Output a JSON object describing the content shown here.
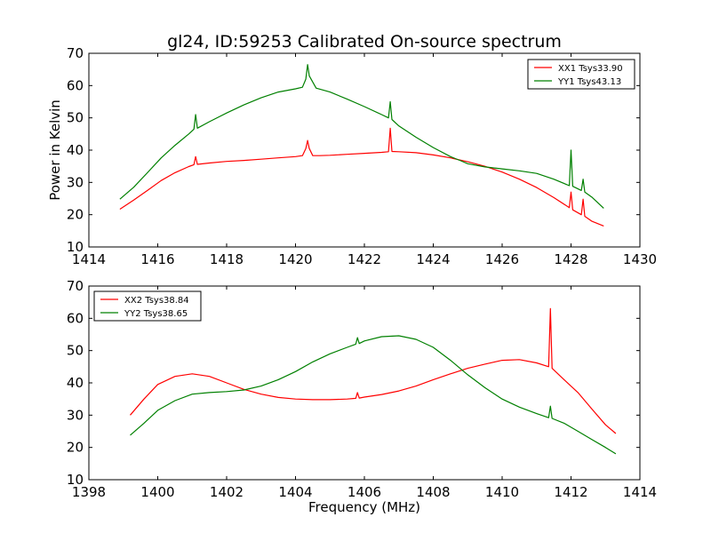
{
  "colors": {
    "xx": "#ff0000",
    "yy": "#008000"
  },
  "chart_data": [
    {
      "type": "line",
      "title": "gl24, ID:59253 Calibrated On-source spectrum",
      "xlabel": "",
      "ylabel": "Power in Kelvin",
      "xlim": [
        1414,
        1430
      ],
      "ylim": [
        10,
        70
      ],
      "xticks": [
        1414,
        1416,
        1418,
        1420,
        1422,
        1424,
        1426,
        1428,
        1430
      ],
      "yticks": [
        10,
        20,
        30,
        40,
        50,
        60,
        70
      ],
      "grid": false,
      "legend_position": "top-right",
      "series": [
        {
          "name": "XX1 Tsys33.90",
          "color": "#ff0000",
          "x": [
            1414.9,
            1415.3,
            1415.7,
            1416.1,
            1416.5,
            1416.9,
            1417.05,
            1417.1,
            1417.15,
            1417.5,
            1418.0,
            1418.5,
            1419.0,
            1419.5,
            1420.0,
            1420.2,
            1420.3,
            1420.35,
            1420.4,
            1420.5,
            1420.7,
            1421.0,
            1421.5,
            1422.0,
            1422.5,
            1422.7,
            1422.75,
            1422.8,
            1423.0,
            1423.5,
            1424.0,
            1424.5,
            1425.0,
            1425.5,
            1426.0,
            1426.5,
            1427.0,
            1427.5,
            1427.95,
            1428.0,
            1428.05,
            1428.3,
            1428.35,
            1428.4,
            1428.6,
            1428.95
          ],
          "y": [
            21.7,
            24.5,
            27.5,
            30.6,
            33.0,
            34.9,
            35.5,
            38.0,
            35.6,
            36.0,
            36.5,
            36.8,
            37.2,
            37.6,
            38.0,
            38.3,
            40.5,
            43.0,
            40.5,
            38.3,
            38.3,
            38.4,
            38.7,
            39.0,
            39.3,
            39.5,
            46.8,
            39.6,
            39.5,
            39.2,
            38.5,
            37.6,
            36.4,
            35.0,
            33.2,
            31.0,
            28.4,
            25.3,
            22.2,
            27.0,
            21.5,
            20.0,
            24.8,
            19.5,
            18.0,
            16.5
          ]
        },
        {
          "name": "YY1 Tsys43.13",
          "color": "#008000",
          "x": [
            1414.9,
            1415.3,
            1415.7,
            1416.1,
            1416.5,
            1416.9,
            1417.05,
            1417.1,
            1417.15,
            1417.5,
            1418.0,
            1418.5,
            1419.0,
            1419.5,
            1420.0,
            1420.2,
            1420.3,
            1420.35,
            1420.4,
            1420.6,
            1421.0,
            1421.5,
            1422.0,
            1422.5,
            1422.7,
            1422.75,
            1422.8,
            1423.0,
            1423.5,
            1424.0,
            1424.5,
            1424.8,
            1425.0,
            1425.5,
            1426.0,
            1426.5,
            1427.0,
            1427.5,
            1427.95,
            1428.0,
            1428.05,
            1428.3,
            1428.35,
            1428.4,
            1428.6,
            1428.95
          ],
          "y": [
            24.8,
            28.5,
            33.0,
            37.6,
            41.5,
            45.0,
            46.5,
            51.0,
            46.8,
            48.8,
            51.5,
            54.0,
            56.2,
            58.0,
            59.0,
            59.5,
            62.0,
            66.5,
            63.0,
            59.2,
            58.0,
            55.8,
            53.5,
            51.0,
            50.0,
            55.0,
            49.5,
            47.5,
            44.0,
            40.8,
            38.0,
            36.7,
            35.8,
            34.8,
            34.2,
            33.6,
            32.8,
            31.0,
            29.0,
            40.0,
            28.8,
            27.5,
            31.0,
            27.0,
            25.5,
            22.0
          ]
        }
      ]
    },
    {
      "type": "line",
      "title": "",
      "xlabel": "Frequency (MHz)",
      "ylabel": "",
      "xlim": [
        1398,
        1414
      ],
      "ylim": [
        10,
        70
      ],
      "xticks": [
        1398,
        1400,
        1402,
        1404,
        1406,
        1408,
        1410,
        1412,
        1414
      ],
      "yticks": [
        10,
        20,
        30,
        40,
        50,
        60,
        70
      ],
      "grid": false,
      "legend_position": "top-left",
      "series": [
        {
          "name": "XX2 Tsys38.84",
          "color": "#ff0000",
          "x": [
            1399.2,
            1399.6,
            1400.0,
            1400.5,
            1401.0,
            1401.5,
            1402.0,
            1402.5,
            1403.0,
            1403.5,
            1404.0,
            1404.5,
            1405.0,
            1405.5,
            1405.75,
            1405.8,
            1405.85,
            1406.0,
            1406.5,
            1407.0,
            1407.5,
            1408.0,
            1408.5,
            1409.0,
            1409.5,
            1410.0,
            1410.5,
            1411.0,
            1411.35,
            1411.4,
            1411.45,
            1411.8,
            1412.2,
            1412.6,
            1413.0,
            1413.3
          ],
          "y": [
            30.0,
            35.0,
            39.5,
            42.0,
            42.8,
            42.0,
            40.0,
            38.0,
            36.5,
            35.5,
            35.0,
            34.8,
            34.8,
            35.0,
            35.2,
            37.0,
            35.3,
            35.6,
            36.4,
            37.5,
            39.0,
            41.0,
            42.8,
            44.5,
            45.8,
            47.0,
            47.2,
            46.2,
            45.0,
            63.0,
            44.5,
            41.0,
            37.0,
            32.0,
            27.0,
            24.3
          ]
        },
        {
          "name": "YY2 Tsys38.65",
          "color": "#008000",
          "x": [
            1399.2,
            1399.6,
            1400.0,
            1400.5,
            1401.0,
            1401.5,
            1402.0,
            1402.5,
            1403.0,
            1403.5,
            1404.0,
            1404.5,
            1405.0,
            1405.5,
            1405.75,
            1405.8,
            1405.85,
            1406.0,
            1406.5,
            1407.0,
            1407.5,
            1408.0,
            1408.5,
            1409.0,
            1409.5,
            1410.0,
            1410.5,
            1411.0,
            1411.35,
            1411.4,
            1411.45,
            1411.8,
            1412.2,
            1412.6,
            1413.0,
            1413.3
          ],
          "y": [
            23.8,
            27.5,
            31.5,
            34.5,
            36.5,
            37.0,
            37.3,
            37.8,
            39.0,
            41.0,
            43.5,
            46.5,
            49.0,
            51.0,
            52.0,
            54.0,
            52.2,
            53.0,
            54.3,
            54.6,
            53.5,
            51.0,
            47.0,
            42.5,
            38.5,
            35.0,
            32.5,
            30.5,
            29.2,
            32.8,
            29.0,
            27.5,
            25.0,
            22.5,
            20.0,
            18.0
          ]
        }
      ]
    }
  ]
}
